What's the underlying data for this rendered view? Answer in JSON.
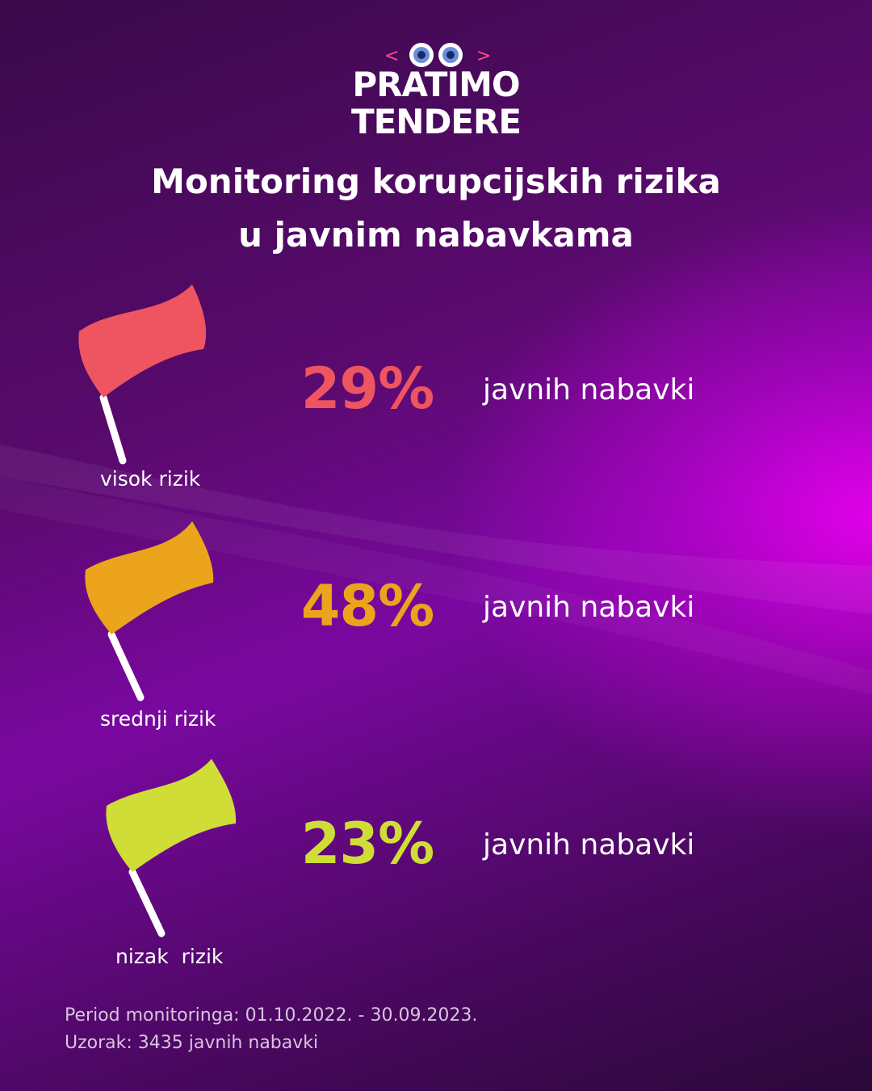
{
  "brand": {
    "line1": "PRATIMO",
    "line2": "TENDERE",
    "icon": "eyes-icon"
  },
  "title": {
    "line1": "Monitoring korupcijskih rizika",
    "line2": "u javnim nabavkama"
  },
  "risks": [
    {
      "label": "visok rizik",
      "percent": "29%",
      "value": 29,
      "description": "javnih nabavki",
      "color": "#ee5560",
      "icon": "red-flag-icon"
    },
    {
      "label": "srednji rizik",
      "percent": "48%",
      "value": 48,
      "description": "javnih nabavki",
      "color": "#eba41c",
      "icon": "orange-flag-icon"
    },
    {
      "label": "nizak  rizik",
      "percent": "23%",
      "value": 23,
      "description": "javnih nabavki",
      "color": "#cfdd36",
      "icon": "yellow-flag-icon"
    }
  ],
  "footer": {
    "period": "Period monitoringa: 01.10.2022. - 30.09.2023.",
    "sample": "Uzorak: 3435 javnih nabavki"
  }
}
